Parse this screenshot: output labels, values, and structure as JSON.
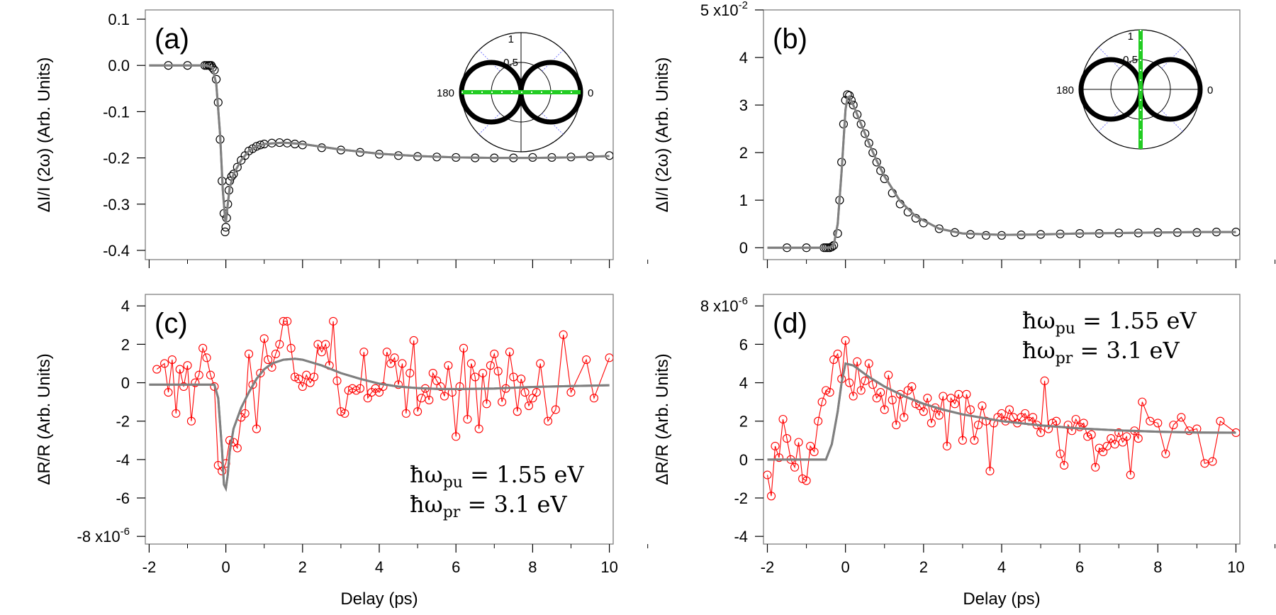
{
  "figure": {
    "x_label": "Delay (ps)",
    "x_ticks": [
      "-2",
      "0",
      "2",
      "4",
      "6",
      "8",
      "10"
    ]
  },
  "chart_data": [
    {
      "id": "a",
      "panel_label": "(a)",
      "type": "scatter",
      "ylabel": "ΔI/I (2ω) (Arb. Units)",
      "y_exponent": "",
      "xlim": [
        -2.1,
        10.1
      ],
      "ylim": [
        -0.42,
        0.12
      ],
      "y_ticks": [
        "0.1",
        "0.0",
        "-0.1",
        "-0.2",
        "-0.3",
        "-0.4"
      ],
      "y_tick_values": [
        0.1,
        0.0,
        -0.1,
        -0.2,
        -0.3,
        -0.4
      ],
      "series": [
        {
          "kind": "markers",
          "color": "#000000",
          "x": [
            -1.5,
            -1.0,
            -0.55,
            -0.5,
            -0.45,
            -0.42,
            -0.38,
            -0.35,
            -0.3,
            -0.25,
            -0.2,
            -0.15,
            -0.1,
            -0.05,
            -0.02,
            0.0,
            0.02,
            0.05,
            0.08,
            0.1,
            0.15,
            0.2,
            0.3,
            0.4,
            0.5,
            0.6,
            0.7,
            0.8,
            0.9,
            1.0,
            1.2,
            1.4,
            1.6,
            1.8,
            2.0,
            2.5,
            3.0,
            3.5,
            4.0,
            4.5,
            5.0,
            5.5,
            6.0,
            6.5,
            7.0,
            7.5,
            8.0,
            8.5,
            9.0,
            9.5,
            10.0
          ],
          "y": [
            0.0,
            0.0,
            0.0,
            0.0,
            0.0,
            0.0,
            0.0,
            -0.005,
            -0.01,
            -0.03,
            -0.08,
            -0.16,
            -0.25,
            -0.32,
            -0.36,
            -0.35,
            -0.33,
            -0.3,
            -0.27,
            -0.25,
            -0.24,
            -0.235,
            -0.22,
            -0.205,
            -0.195,
            -0.185,
            -0.18,
            -0.175,
            -0.172,
            -0.17,
            -0.168,
            -0.167,
            -0.168,
            -0.17,
            -0.172,
            -0.178,
            -0.183,
            -0.188,
            -0.192,
            -0.195,
            -0.197,
            -0.198,
            -0.199,
            -0.2,
            -0.2,
            -0.2,
            -0.199,
            -0.199,
            -0.198,
            -0.197,
            -0.195
          ]
        },
        {
          "kind": "fit",
          "color": "#7f7f7f",
          "x": [
            -2.0,
            -0.5,
            -0.35,
            -0.25,
            -0.15,
            -0.08,
            -0.02,
            0.0,
            0.05,
            0.1,
            0.2,
            0.4,
            0.6,
            0.8,
            1.0,
            1.5,
            2.0,
            3.0,
            4.0,
            5.0,
            6.0,
            7.0,
            8.0,
            9.0,
            10.0
          ],
          "y": [
            0.0,
            0.0,
            -0.005,
            -0.04,
            -0.15,
            -0.27,
            -0.33,
            -0.34,
            -0.3,
            -0.265,
            -0.235,
            -0.205,
            -0.185,
            -0.175,
            -0.17,
            -0.167,
            -0.17,
            -0.182,
            -0.191,
            -0.196,
            -0.199,
            -0.2,
            -0.2,
            -0.199,
            -0.196
          ]
        }
      ],
      "inset": {
        "tick_outer": "1",
        "tick_inner": "0.5",
        "angle_left": "180",
        "angle_right": "0",
        "green_orientation": "horizontal"
      }
    },
    {
      "id": "b",
      "panel_label": "(b)",
      "type": "scatter",
      "ylabel": "ΔI/I (2ω) (Arb. Units)",
      "y_exponent": "x10",
      "y_exponent_power": "-2",
      "y_exponent_value": "5",
      "xlim": [
        -2.1,
        10.1
      ],
      "ylim": [
        -0.25,
        5.0
      ],
      "y_ticks": [
        "4",
        "3",
        "2",
        "1",
        "0"
      ],
      "y_tick_values": [
        4,
        3,
        2,
        1,
        0
      ],
      "series": [
        {
          "kind": "markers",
          "color": "#000000",
          "x": [
            -1.5,
            -1.0,
            -0.55,
            -0.5,
            -0.45,
            -0.4,
            -0.35,
            -0.3,
            -0.2,
            -0.15,
            -0.1,
            -0.05,
            0.0,
            0.05,
            0.1,
            0.15,
            0.2,
            0.3,
            0.4,
            0.5,
            0.6,
            0.7,
            0.8,
            0.9,
            1.0,
            1.2,
            1.4,
            1.6,
            1.8,
            2.0,
            2.4,
            2.8,
            3.2,
            3.6,
            4.0,
            4.5,
            5.0,
            5.5,
            6.0,
            6.5,
            7.0,
            7.5,
            8.0,
            8.5,
            9.0,
            9.5,
            10.0
          ],
          "y": [
            0.0,
            0.0,
            0.0,
            0.0,
            0.0,
            0.0,
            0.02,
            0.05,
            0.3,
            1.0,
            1.8,
            2.6,
            3.1,
            3.22,
            3.2,
            3.1,
            3.0,
            2.8,
            2.6,
            2.4,
            2.2,
            2.0,
            1.8,
            1.62,
            1.45,
            1.15,
            0.92,
            0.75,
            0.62,
            0.52,
            0.4,
            0.32,
            0.28,
            0.26,
            0.26,
            0.27,
            0.28,
            0.29,
            0.3,
            0.3,
            0.31,
            0.31,
            0.32,
            0.32,
            0.32,
            0.33,
            0.33
          ]
        },
        {
          "kind": "fit",
          "color": "#7f7f7f",
          "x": [
            -2.0,
            -0.4,
            -0.3,
            -0.2,
            -0.1,
            0.0,
            0.05,
            0.1,
            0.2,
            0.4,
            0.6,
            0.8,
            1.0,
            1.4,
            1.8,
            2.4,
            3.0,
            4.0,
            5.0,
            6.0,
            7.0,
            8.0,
            9.0,
            10.0
          ],
          "y": [
            0.0,
            0.0,
            0.05,
            0.5,
            1.6,
            2.9,
            3.15,
            3.18,
            3.0,
            2.6,
            2.2,
            1.83,
            1.5,
            0.98,
            0.66,
            0.4,
            0.3,
            0.27,
            0.28,
            0.3,
            0.31,
            0.32,
            0.33,
            0.33
          ]
        }
      ],
      "inset": {
        "tick_outer": "1",
        "tick_inner": "0.5",
        "angle_left": "180",
        "angle_right": "0",
        "green_orientation": "vertical"
      }
    },
    {
      "id": "c",
      "panel_label": "(c)",
      "type": "line",
      "ylabel": "ΔR/R (Arb. Units)",
      "y_exponent": "x10",
      "y_exponent_power": "-6",
      "y_exponent_value": "-8",
      "xlim": [
        -2.1,
        10.1
      ],
      "ylim": [
        -8.4,
        4.6
      ],
      "y_ticks": [
        "4",
        "2",
        "0",
        "-2",
        "-4",
        "-6"
      ],
      "y_tick_values": [
        4,
        2,
        0,
        -2,
        -4,
        -6
      ],
      "series": [
        {
          "kind": "data",
          "color": "#ff0000",
          "x": [
            -1.8,
            -1.6,
            -1.5,
            -1.4,
            -1.3,
            -1.2,
            -1.1,
            -1.0,
            -0.9,
            -0.8,
            -0.7,
            -0.6,
            -0.5,
            -0.4,
            -0.3,
            -0.2,
            -0.1,
            0.0,
            0.1,
            0.2,
            0.3,
            0.4,
            0.5,
            0.6,
            0.7,
            0.8,
            0.9,
            1.0,
            1.1,
            1.2,
            1.3,
            1.4,
            1.5,
            1.6,
            1.7,
            1.8,
            1.9,
            2.0,
            2.1,
            2.2,
            2.3,
            2.4,
            2.5,
            2.6,
            2.7,
            2.8,
            2.9,
            3.0,
            3.1,
            3.2,
            3.3,
            3.4,
            3.5,
            3.6,
            3.7,
            3.8,
            3.9,
            4.0,
            4.1,
            4.2,
            4.3,
            4.4,
            4.5,
            4.6,
            4.7,
            4.8,
            4.9,
            5.0,
            5.1,
            5.2,
            5.3,
            5.4,
            5.5,
            5.6,
            5.7,
            5.8,
            5.9,
            6.0,
            6.1,
            6.2,
            6.3,
            6.4,
            6.5,
            6.6,
            6.7,
            6.8,
            6.9,
            7.0,
            7.1,
            7.2,
            7.3,
            7.4,
            7.5,
            7.6,
            7.7,
            7.8,
            7.9,
            8.0,
            8.1,
            8.2,
            8.4,
            8.6,
            8.8,
            9.0,
            9.4,
            9.6,
            10.0
          ],
          "y": [
            0.7,
            1.0,
            -0.5,
            1.2,
            -1.6,
            0.7,
            -0.2,
            0.9,
            -2.0,
            0.0,
            0.4,
            1.8,
            1.3,
            0.4,
            -0.2,
            -4.3,
            -4.6,
            -4.2,
            -3.0,
            -3.1,
            -3.4,
            -1.8,
            -1.6,
            1.5,
            -0.1,
            -2.4,
            0.5,
            2.3,
            1.2,
            0.8,
            1.5,
            2.0,
            3.2,
            3.2,
            1.8,
            0.3,
            0.2,
            -0.2,
            0.4,
            0.0,
            0.3,
            2.0,
            1.6,
            2.0,
            0.9,
            3.2,
            0.1,
            -1.5,
            -1.6,
            -0.4,
            -0.3,
            -0.4,
            -0.3,
            1.6,
            -0.8,
            -0.5,
            -0.3,
            -0.5,
            -0.2,
            1.6,
            1.0,
            1.3,
            -0.1,
            1.0,
            -1.6,
            0.5,
            2.2,
            -1.5,
            -0.8,
            -0.3,
            -0.9,
            0.5,
            0.1,
            -0.2,
            -0.7,
            0.9,
            -0.5,
            -2.8,
            -0.2,
            1.8,
            -1.9,
            1.0,
            0.3,
            -2.4,
            0.5,
            -1.1,
            0.9,
            1.5,
            0.6,
            -1.0,
            -0.3,
            1.6,
            0.3,
            -1.5,
            0.2,
            -0.5,
            -1.2,
            -0.8,
            -0.5,
            1.0,
            -2.0,
            -1.4,
            2.5,
            -0.5,
            1.2,
            -0.8,
            1.3
          ]
        },
        {
          "kind": "fit",
          "color": "#7f7f7f",
          "x": [
            -2.0,
            -0.3,
            -0.2,
            -0.1,
            -0.05,
            0.0,
            0.05,
            0.1,
            0.2,
            0.4,
            0.6,
            0.8,
            1.0,
            1.2,
            1.5,
            1.8,
            2.0,
            2.5,
            3.0,
            3.5,
            4.0,
            4.5,
            5.0,
            5.5,
            6.0,
            7.0,
            8.0,
            9.0,
            10.0
          ],
          "y": [
            -0.1,
            -0.1,
            -0.8,
            -3.5,
            -5.3,
            -5.5,
            -4.8,
            -3.6,
            -2.4,
            -1.3,
            -0.5,
            0.2,
            0.7,
            1.0,
            1.2,
            1.25,
            1.2,
            0.9,
            0.5,
            0.2,
            -0.05,
            -0.2,
            -0.28,
            -0.32,
            -0.33,
            -0.3,
            -0.22,
            -0.17,
            -0.13
          ]
        }
      ],
      "annotations": [
        {
          "main": "ħω",
          "sub": "pu",
          "tail": " = 1.55 eV"
        },
        {
          "main": "ħω",
          "sub": "pr",
          "tail": " = 3.1 eV"
        }
      ]
    },
    {
      "id": "d",
      "panel_label": "(d)",
      "type": "line",
      "ylabel": "ΔR/R (Arb. Units)",
      "y_exponent": "x10",
      "y_exponent_power": "-6",
      "y_exponent_value": "8",
      "xlim": [
        -2.1,
        10.1
      ],
      "ylim": [
        -4.4,
        8.6
      ],
      "y_ticks": [
        "6",
        "4",
        "2",
        "0",
        "-2",
        "-4"
      ],
      "y_tick_values": [
        6,
        4,
        2,
        0,
        -2,
        -4
      ],
      "series": [
        {
          "kind": "data",
          "color": "#ff0000",
          "x": [
            -2.0,
            -1.9,
            -1.8,
            -1.7,
            -1.6,
            -1.5,
            -1.4,
            -1.3,
            -1.2,
            -1.1,
            -1.0,
            -0.9,
            -0.8,
            -0.7,
            -0.6,
            -0.5,
            -0.4,
            -0.3,
            -0.2,
            -0.1,
            0.0,
            0.1,
            0.2,
            0.3,
            0.4,
            0.5,
            0.6,
            0.7,
            0.8,
            0.9,
            1.0,
            1.1,
            1.2,
            1.3,
            1.4,
            1.5,
            1.6,
            1.7,
            1.8,
            1.9,
            2.0,
            2.1,
            2.2,
            2.3,
            2.4,
            2.5,
            2.6,
            2.7,
            2.8,
            2.9,
            3.0,
            3.1,
            3.2,
            3.3,
            3.4,
            3.5,
            3.6,
            3.7,
            3.8,
            3.9,
            4.0,
            4.1,
            4.2,
            4.3,
            4.4,
            4.5,
            4.6,
            4.7,
            4.8,
            4.9,
            5.0,
            5.1,
            5.2,
            5.3,
            5.4,
            5.5,
            5.6,
            5.7,
            5.8,
            5.9,
            6.0,
            6.1,
            6.2,
            6.3,
            6.4,
            6.5,
            6.6,
            6.7,
            6.8,
            6.9,
            7.0,
            7.1,
            7.2,
            7.3,
            7.4,
            7.5,
            7.6,
            7.8,
            8.0,
            8.2,
            8.4,
            8.6,
            8.8,
            9.0,
            9.2,
            9.4,
            9.6,
            10.0
          ],
          "y": [
            -0.8,
            -1.9,
            0.7,
            0.1,
            2.1,
            1.1,
            0.0,
            -0.4,
            0.9,
            -1.0,
            -1.1,
            0.7,
            0.4,
            2.0,
            3.0,
            3.6,
            3.5,
            5.2,
            5.5,
            4.2,
            6.2,
            4.0,
            3.3,
            5.1,
            3.6,
            4.1,
            5.0,
            3.9,
            3.2,
            3.5,
            2.6,
            4.4,
            3.1,
            1.8,
            3.4,
            2.2,
            3.6,
            3.8,
            2.9,
            2.8,
            2.5,
            3.2,
            1.9,
            2.7,
            2.3,
            3.3,
            0.7,
            3.2,
            2.9,
            3.4,
            1.0,
            3.4,
            2.6,
            1.0,
            1.8,
            2.8,
            2.0,
            -0.6,
            1.9,
            2.2,
            2.4,
            2.0,
            2.6,
            2.2,
            1.9,
            2.2,
            2.4,
            2.0,
            2.2,
            1.8,
            1.4,
            4.1,
            1.6,
            1.9,
            2.0,
            0.3,
            -0.3,
            1.8,
            1.5,
            2.1,
            1.7,
            1.9,
            1.2,
            1.3,
            -0.4,
            0.6,
            0.4,
            0.7,
            1.1,
            0.8,
            1.4,
            0.9,
            1.2,
            -0.8,
            1.5,
            1.1,
            3.0,
            2.0,
            1.9,
            0.3,
            1.8,
            2.2,
            1.5,
            1.6,
            -0.2,
            -0.1,
            2.0,
            1.4
          ]
        },
        {
          "kind": "fit",
          "color": "#7f7f7f",
          "x": [
            -2.0,
            -0.5,
            -0.35,
            -0.2,
            -0.1,
            0.0,
            0.2,
            0.4,
            0.6,
            0.8,
            1.0,
            1.5,
            2.0,
            2.5,
            3.0,
            4.0,
            5.0,
            6.0,
            7.0,
            8.0,
            9.0,
            10.0
          ],
          "y": [
            0.0,
            0.0,
            0.8,
            2.5,
            4.0,
            5.0,
            4.9,
            4.6,
            4.3,
            4.05,
            3.8,
            3.3,
            2.9,
            2.6,
            2.35,
            2.0,
            1.78,
            1.62,
            1.52,
            1.45,
            1.41,
            1.4
          ]
        }
      ],
      "annotations": [
        {
          "main": "ħω",
          "sub": "pu",
          "tail": " = 1.55 eV"
        },
        {
          "main": "ħω",
          "sub": "pr",
          "tail": " = 3.1 eV"
        }
      ]
    }
  ]
}
